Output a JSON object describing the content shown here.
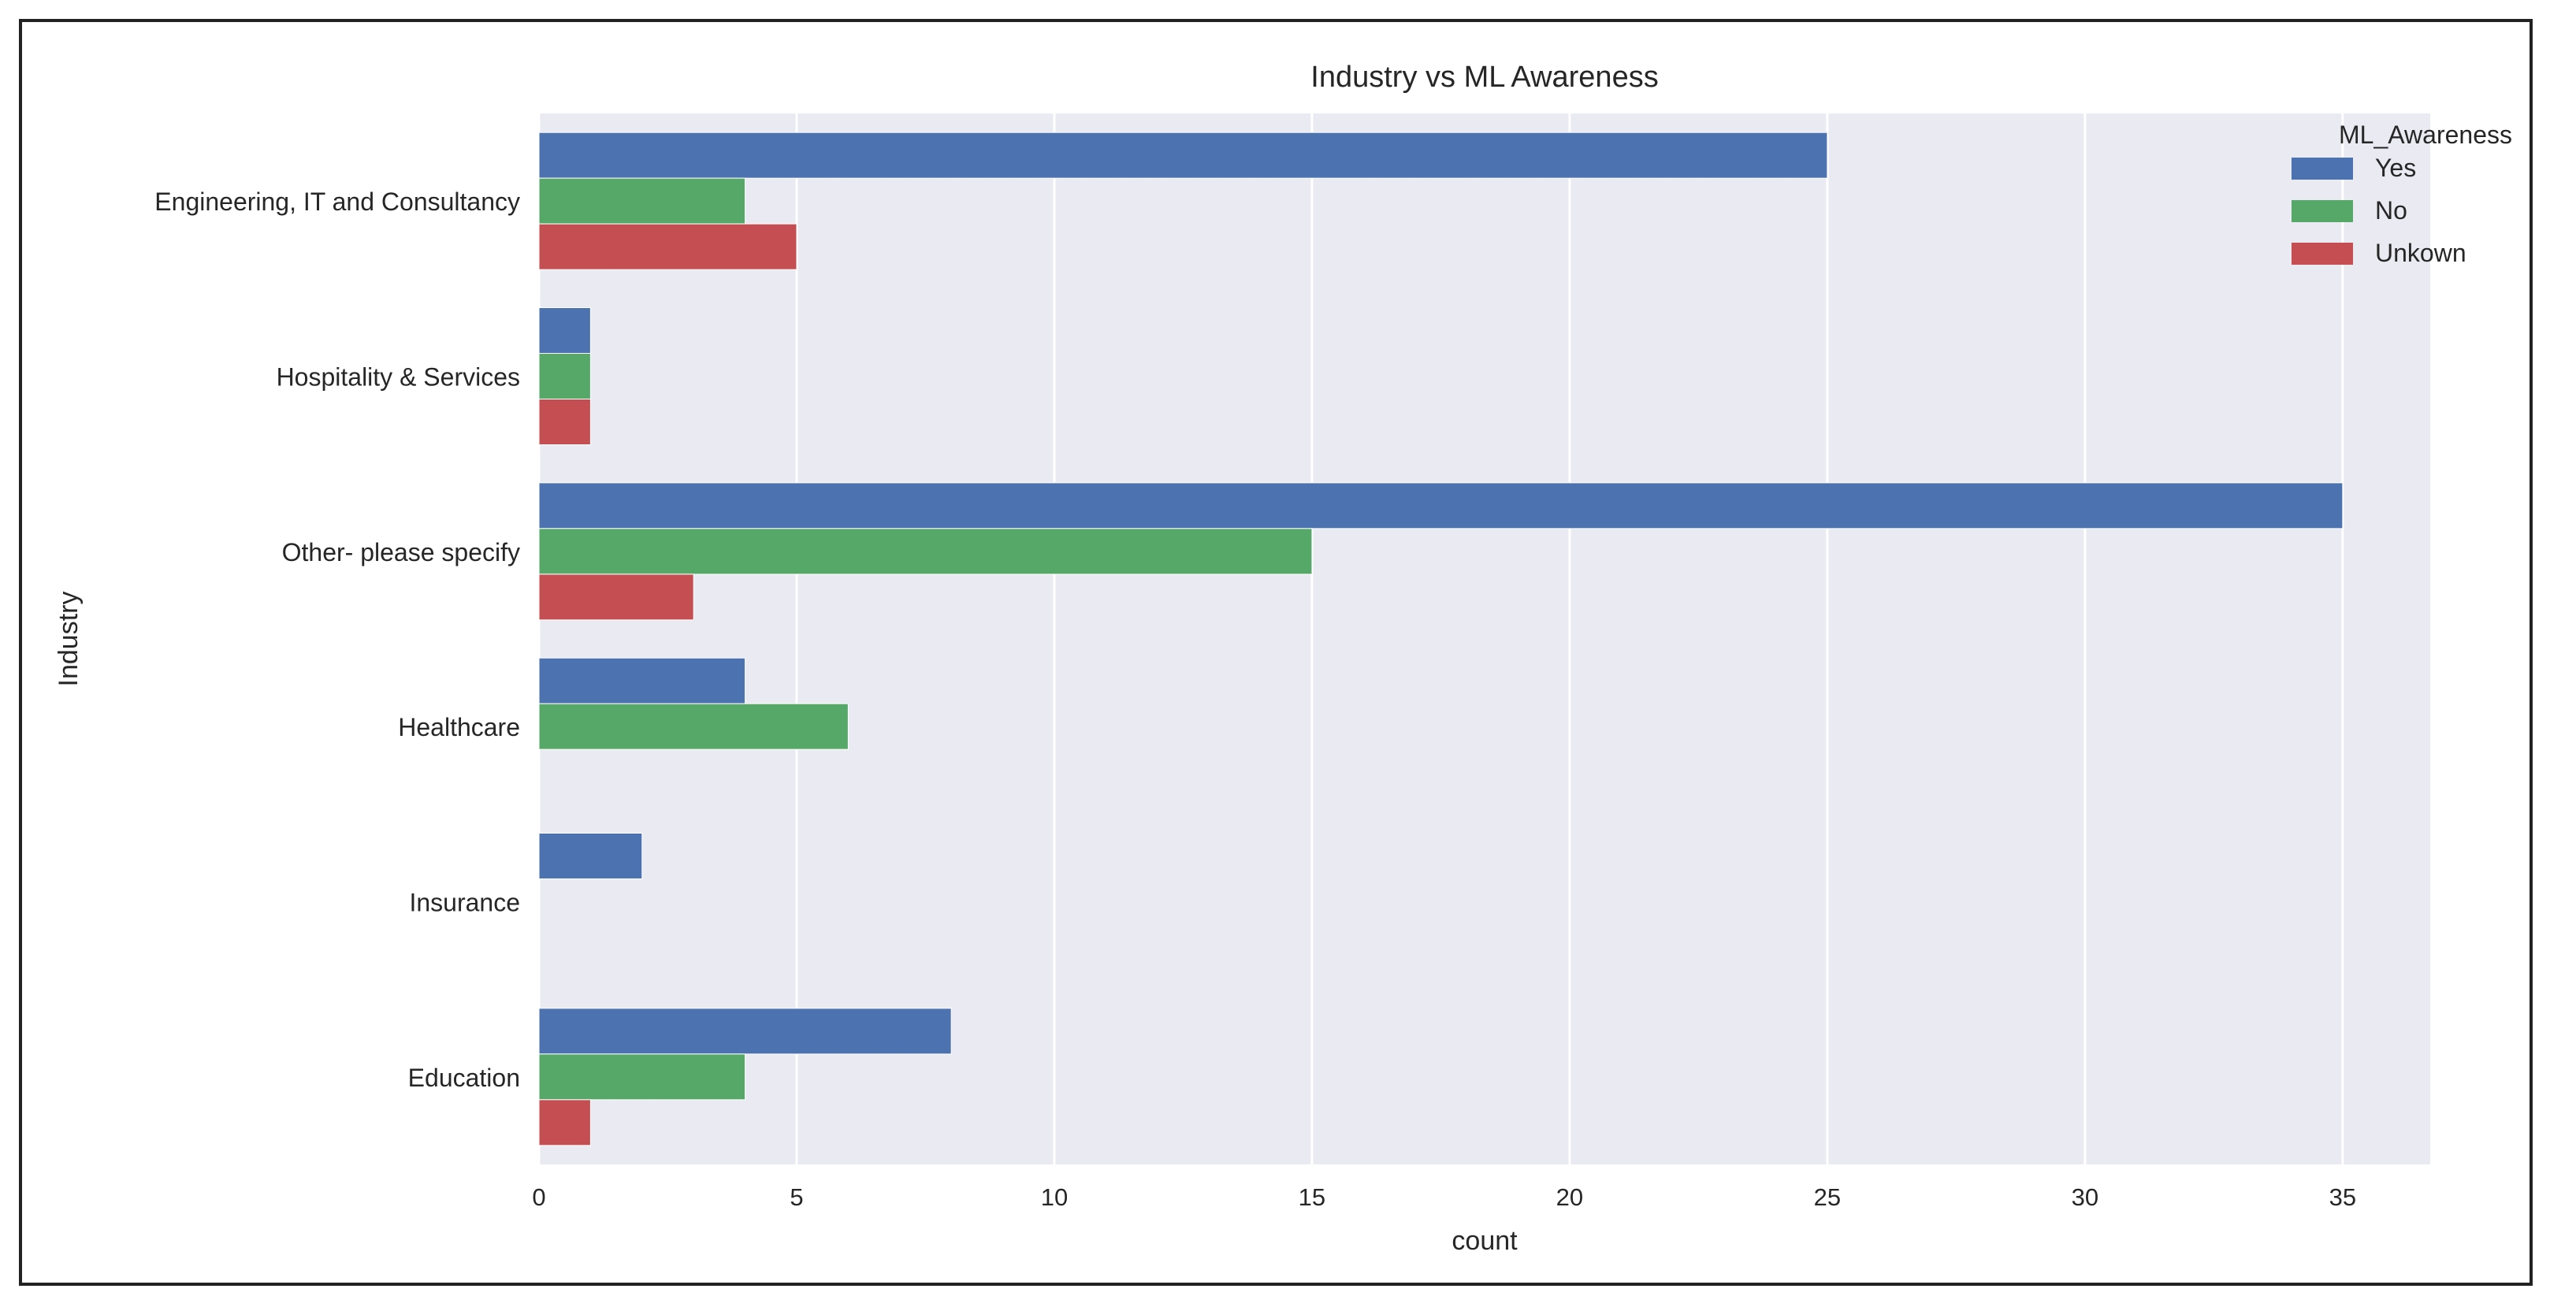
{
  "chart_data": {
    "type": "bar",
    "orientation": "horizontal",
    "title": "Industry vs ML Awareness",
    "xlabel": "count",
    "ylabel": "Industry",
    "categories": [
      "Engineering, IT and Consultancy",
      "Hospitality & Services",
      "Other- please specify",
      "Healthcare",
      "Insurance",
      "Education"
    ],
    "series": [
      {
        "name": "Yes",
        "color": "#4c72b0",
        "values": [
          25,
          1,
          35,
          4,
          2,
          8
        ]
      },
      {
        "name": "No",
        "color": "#55a868",
        "values": [
          4,
          1,
          15,
          6,
          0,
          4
        ]
      },
      {
        "name": "Unkown",
        "color": "#c44e52",
        "values": [
          5,
          1,
          3,
          0,
          0,
          1
        ]
      }
    ],
    "xlim": [
      0,
      36.7
    ],
    "xticks": [
      0,
      5,
      10,
      15,
      20,
      25,
      30,
      35
    ],
    "grid": true,
    "legend": {
      "title": "ML_Awareness",
      "position": "top-right"
    },
    "colors": {
      "background": "#eaeaf2",
      "grid": "#ffffff",
      "text": "#262626"
    }
  }
}
